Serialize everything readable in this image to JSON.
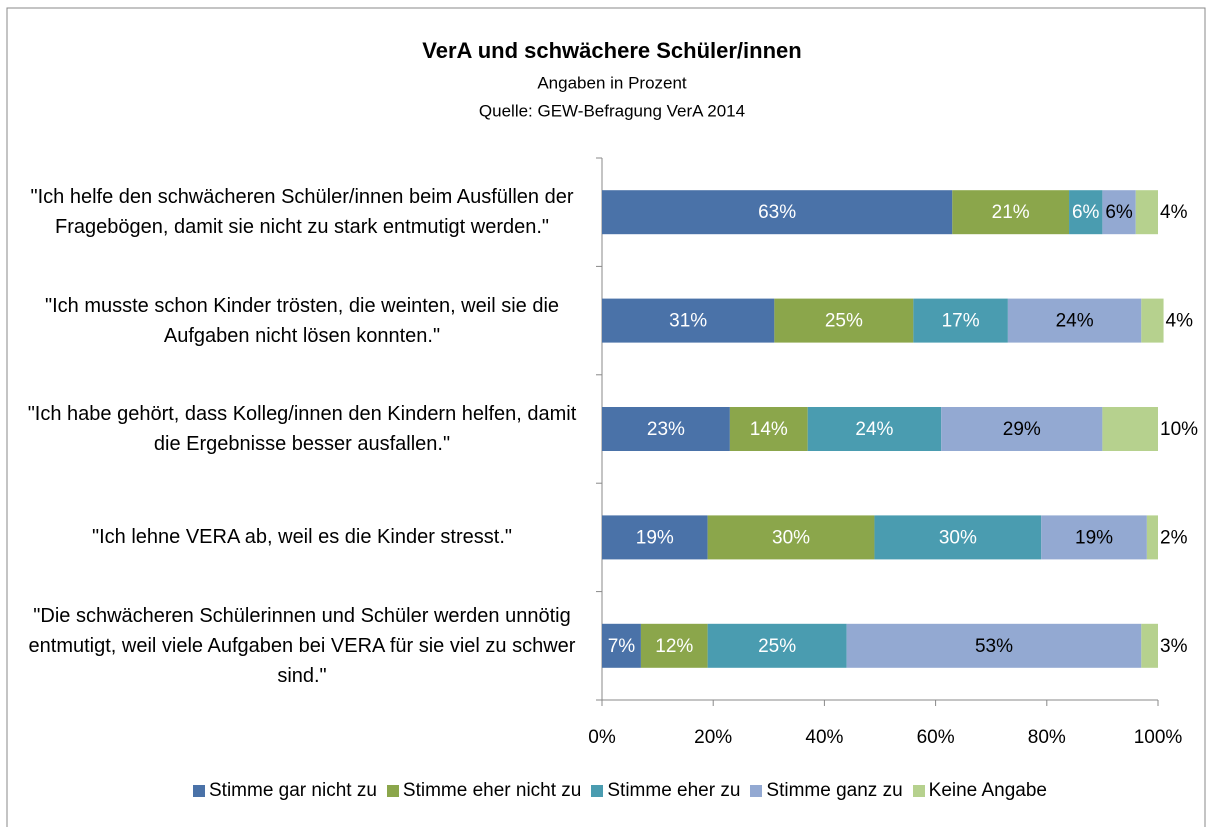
{
  "chart_data": {
    "type": "stacked_barh",
    "title": "VerA und schwächere Schüler/innen",
    "subtitle": [
      "Angaben in Prozent",
      "Quelle:  GEW-Befragung VerA 2014"
    ],
    "categories": [
      "\"Ich helfe den schwächeren Schüler/innen beim Ausfüllen der Fragebögen, damit sie nicht zu stark entmutigt werden.\"",
      "\"Ich musste schon Kinder trösten, die weinten, weil sie die Aufgaben nicht lösen konnten.\"",
      "\"Ich habe gehört, dass Kolleg/innen den Kindern helfen, damit die Ergebnisse besser ausfallen.\"",
      "\"Ich lehne VERA ab, weil es die Kinder stresst.\"",
      "\"Die schwächeren Schülerinnen und Schüler werden unnötig entmutigt, weil viele Aufgaben bei VERA für sie viel zu schwer sind.\""
    ],
    "series": [
      {
        "name": "Stimme gar nicht zu",
        "color": "#4a72a8",
        "label_color": "#ffffff",
        "values": [
          63,
          31,
          23,
          19,
          7
        ],
        "value_labels": [
          "63%",
          "31%",
          "23%",
          "19%",
          "7%"
        ]
      },
      {
        "name": "Stimme eher nicht zu",
        "color": "#8ba64b",
        "label_color": "#ffffff",
        "values": [
          21,
          25,
          14,
          30,
          12
        ],
        "value_labels": [
          "21%",
          "25%",
          "14%",
          "30%",
          "12%"
        ]
      },
      {
        "name": "Stimme eher zu",
        "color": "#4a9cb0",
        "label_color": "#ffffff",
        "values": [
          6,
          17,
          24,
          30,
          25
        ],
        "value_labels": [
          "6%",
          "17%",
          "24%",
          "30%",
          "25%"
        ]
      },
      {
        "name": "Stimme ganz zu",
        "color": "#93a9d2",
        "label_color": "#000000",
        "values": [
          6,
          24,
          29,
          19,
          53
        ],
        "value_labels": [
          "6%",
          "24%",
          "29%",
          "19%",
          "53%"
        ]
      },
      {
        "name": "Keine Angabe",
        "color": "#b6d18e",
        "label_color": "#000000",
        "values": [
          4,
          4,
          10,
          2,
          3
        ],
        "value_labels": [
          "4%",
          "4%",
          "10%",
          "2%",
          "3%"
        ]
      }
    ],
    "xlim": [
      0,
      100
    ],
    "xticks": [
      {
        "value": 0,
        "label": "0%"
      },
      {
        "value": 20,
        "label": "20%"
      },
      {
        "value": 40,
        "label": "40%"
      },
      {
        "value": 60,
        "label": "60%"
      },
      {
        "value": 80,
        "label": "80%"
      },
      {
        "value": 100,
        "label": "100%"
      }
    ],
    "legend": "bottom"
  }
}
